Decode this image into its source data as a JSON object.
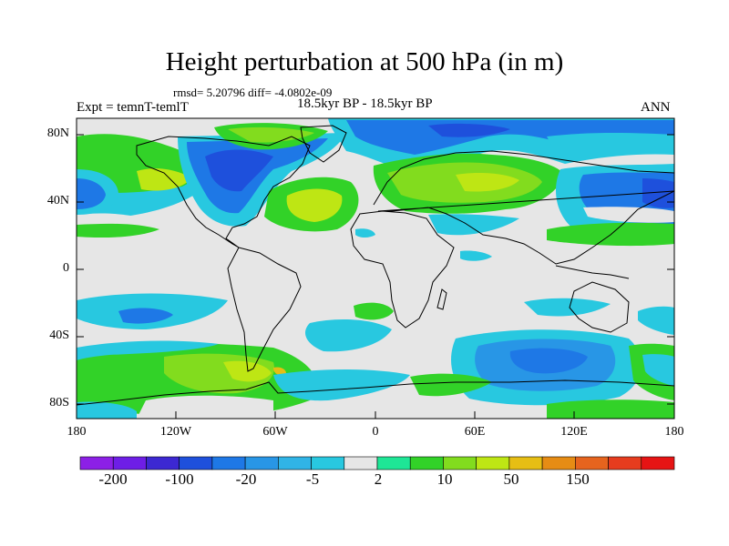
{
  "title": "Height perturbation at 500 hPa (in m)",
  "stats": "rmsd= 5.20796 diff= -4.0802e-09",
  "expt": "Expt = temnT-temlT",
  "period": "18.5kyr BP - 18.5kyr BP",
  "season": "ANN",
  "y_ticks": [
    "80N",
    "40N",
    "0",
    "40S",
    "80S"
  ],
  "x_ticks": [
    "180",
    "120W",
    "60W",
    "0",
    "60E",
    "120E",
    "180"
  ],
  "colorbar": {
    "colors": [
      "#8c20e6",
      "#6e1ee6",
      "#3c28d2",
      "#1e50dc",
      "#1e78e6",
      "#2896e6",
      "#30b4e6",
      "#28c8e0",
      "#e6e6e6",
      "#1ee696",
      "#32d228",
      "#82dc1e",
      "#bee614",
      "#e6be14",
      "#e68c14",
      "#e6641e",
      "#e63c1e",
      "#e61414"
    ],
    "labels": [
      "-200",
      "-100",
      "-20",
      "-5",
      "2",
      "10",
      "50",
      "150"
    ]
  }
}
